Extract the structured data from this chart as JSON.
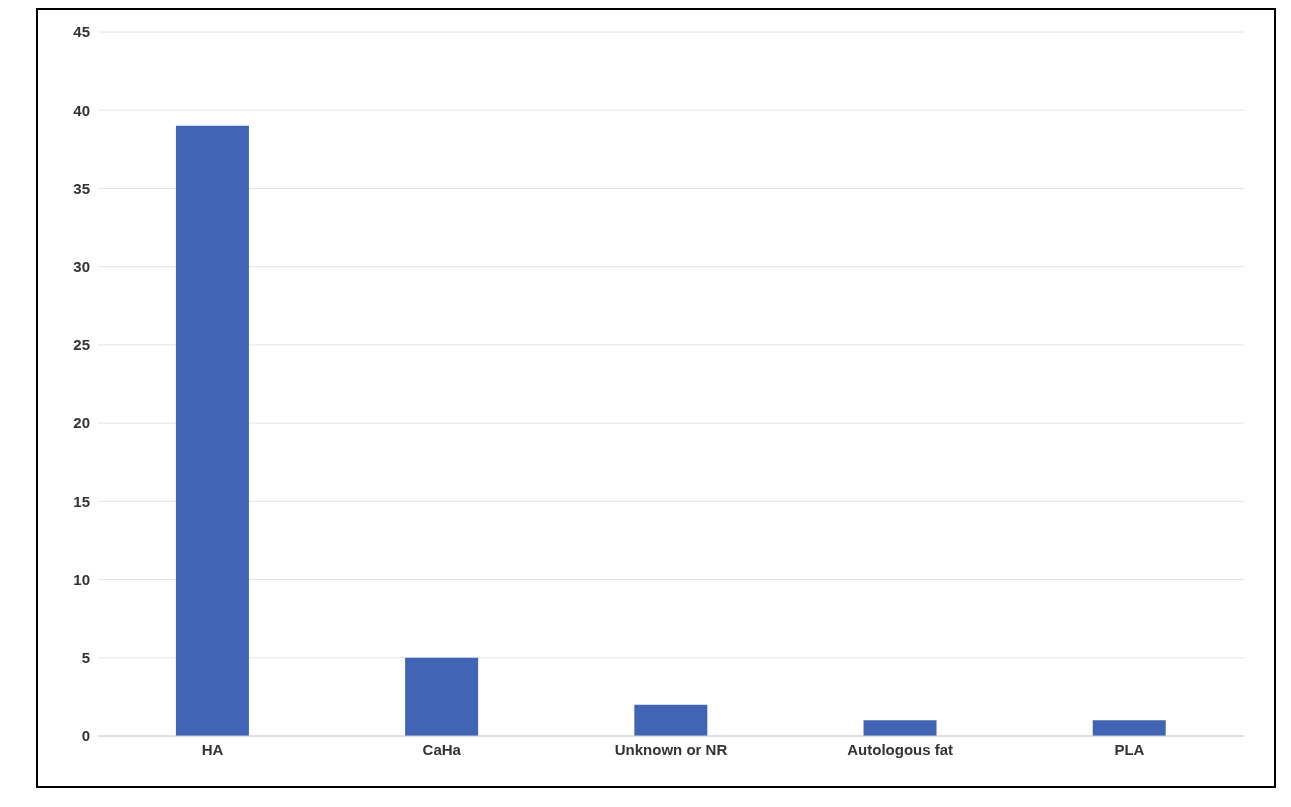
{
  "chart_data": {
    "type": "bar",
    "categories": [
      "HA",
      "CaHa",
      "Unknown or NR",
      "Autologous fat",
      "PLA"
    ],
    "values": [
      39,
      5,
      2,
      1,
      1
    ],
    "color": "#4264b4",
    "ylim": [
      0,
      45
    ],
    "yticks": [
      0,
      5,
      10,
      15,
      20,
      25,
      30,
      35,
      40,
      45
    ],
    "grid": "y"
  }
}
